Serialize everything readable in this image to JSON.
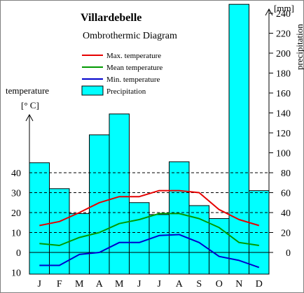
{
  "chart_data": {
    "type": "bar",
    "title": "Villardebelle",
    "subtitle": "Ombrothermic Diagram",
    "categories": [
      "J",
      "F",
      "M",
      "A",
      "M",
      "J",
      "J",
      "A",
      "S",
      "O",
      "N",
      "D"
    ],
    "left_axis": {
      "label_line1": "temperature",
      "label_line2": "[° C]",
      "unit": "°C",
      "range": [
        -10,
        40
      ],
      "ticks": [
        "40",
        "30",
        "20",
        "10",
        "0",
        "10"
      ],
      "tick_values": [
        40,
        30,
        20,
        10,
        0,
        -10
      ]
    },
    "right_axis": {
      "unit_label": "[mm]",
      "label": "precipitation",
      "range": [
        -20,
        250
      ],
      "ticks": [
        "240",
        "220",
        "200",
        "180",
        "160",
        "140",
        "120",
        "100",
        "80",
        "60",
        "40",
        "20",
        "0"
      ],
      "tick_values": [
        240,
        220,
        200,
        180,
        160,
        140,
        120,
        100,
        80,
        60,
        40,
        20,
        0
      ]
    },
    "reference_lines_celsius": [
      10,
      20,
      30,
      40
    ],
    "bars": {
      "name": "Precipitation",
      "color": "#00ffff",
      "axis": "right",
      "values": [
        90,
        64,
        39,
        118,
        139,
        50,
        38,
        91,
        47,
        34,
        249,
        62
      ]
    },
    "series": [
      {
        "name": "Max. temperature",
        "color": "#e60000",
        "axis": "left",
        "values": [
          13.5,
          15.5,
          20,
          25,
          28,
          28,
          31,
          31,
          30,
          21.5,
          16.5,
          13.5
        ]
      },
      {
        "name": "Mean temperature",
        "color": "#009900",
        "axis": "left",
        "values": [
          4.5,
          3.5,
          7.5,
          10,
          14.5,
          16.5,
          19.5,
          19.5,
          17,
          12.5,
          5,
          3.5
        ]
      },
      {
        "name": "Min. temperature",
        "color": "#0000cc",
        "axis": "left",
        "values": [
          -6.5,
          -6.5,
          -1,
          0,
          5,
          5,
          8.5,
          9,
          5,
          -2,
          -4,
          -7.5
        ]
      }
    ],
    "legend_position": "top-left, below subtitle",
    "grid": false
  }
}
